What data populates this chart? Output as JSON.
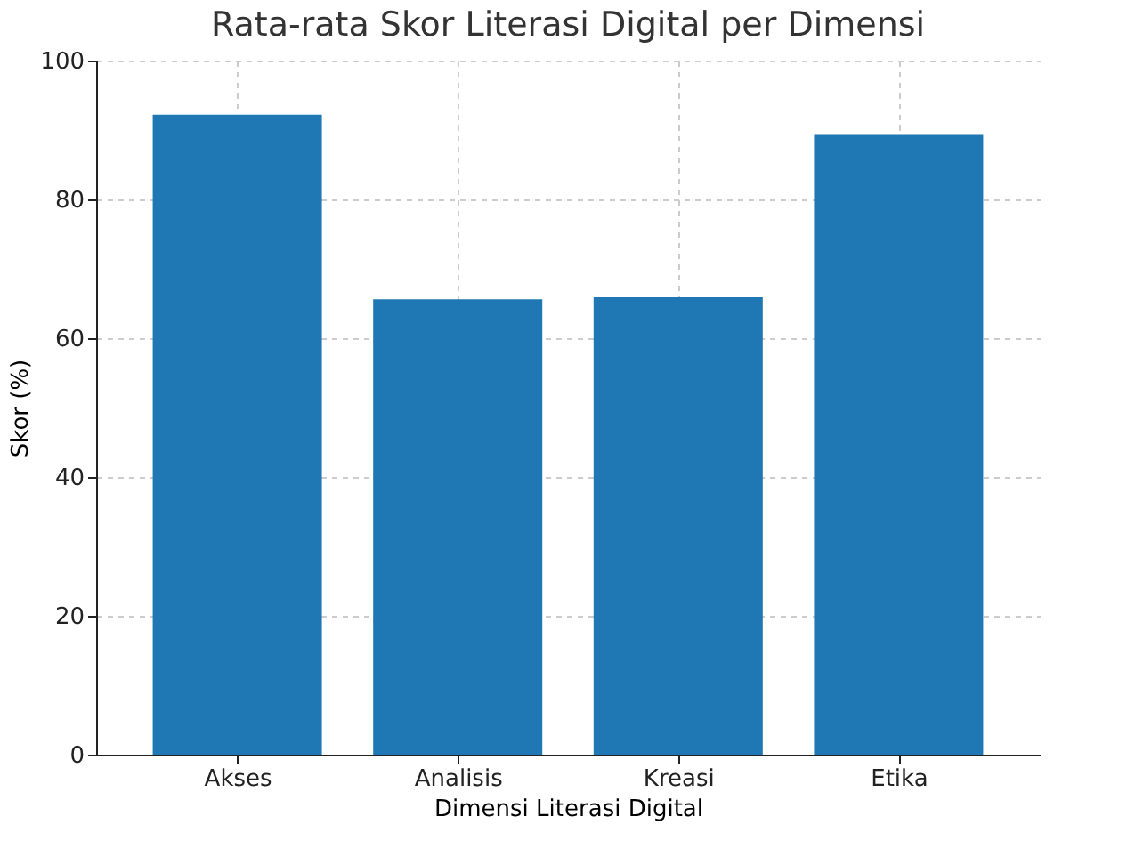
{
  "chart_data": {
    "type": "bar",
    "title": "Rata-rata Skor Literasi Digital per Dimensi",
    "xlabel": "Dimensi Literasi Digital",
    "ylabel": "Skor (%)",
    "categories": [
      "Akses",
      "Analisis",
      "Kreasi",
      "Etika"
    ],
    "values": [
      92.2,
      65.6,
      65.9,
      89.3
    ],
    "color": "#1f77b4",
    "ylim": [
      0,
      100
    ],
    "yticks": [
      0,
      20,
      40,
      60,
      80,
      100
    ],
    "grid": true
  }
}
